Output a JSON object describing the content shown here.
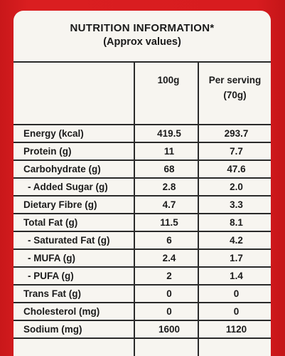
{
  "header": {
    "title": "NUTRITION INFORMATION*",
    "subtitle": "(Approx values)"
  },
  "columns": {
    "per_100g": "100g",
    "per_serving_line1": "Per serving",
    "per_serving_line2": "(70g)"
  },
  "rows": [
    {
      "label": "Energy (kcal)",
      "per_100g": "419.5",
      "per_serving": "293.7"
    },
    {
      "label": "Protein (g)",
      "per_100g": "11",
      "per_serving": "7.7"
    },
    {
      "label": "Carbohydrate (g)",
      "per_100g": "68",
      "per_serving": "47.6"
    },
    {
      "label": "- Added Sugar (g)",
      "per_100g": "2.8",
      "per_serving": "2.0"
    },
    {
      "label": "Dietary Fibre (g)",
      "per_100g": "4.7",
      "per_serving": "3.3"
    },
    {
      "label": "Total Fat (g)",
      "per_100g": "11.5",
      "per_serving": "8.1"
    },
    {
      "label": "- Saturated Fat (g)",
      "per_100g": "6",
      "per_serving": "4.2"
    },
    {
      "label": "- MUFA (g)",
      "per_100g": "2.4",
      "per_serving": "1.7"
    },
    {
      "label": "- PUFA (g)",
      "per_100g": "2",
      "per_serving": "1.4"
    },
    {
      "label": "Trans Fat (g)",
      "per_100g": "0",
      "per_serving": "0"
    },
    {
      "label": "Cholesterol (mg)",
      "per_100g": "0",
      "per_serving": "0"
    },
    {
      "label": "Sodium (mg)",
      "per_100g": "1600",
      "per_serving": "1120"
    }
  ],
  "colors": {
    "packaging_red": "#d3191b",
    "panel_background": "#f7f5f0",
    "text": "#1b1b1b",
    "grid_lines": "#2a2a2a"
  }
}
